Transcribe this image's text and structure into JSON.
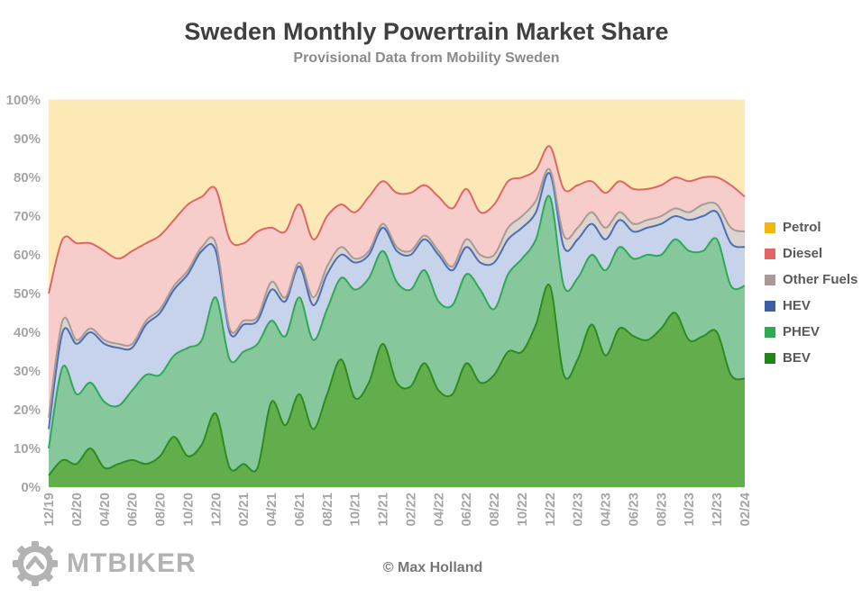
{
  "chart_data": {
    "type": "area",
    "stacked": true,
    "title": "Sweden Monthly Powertrain Market Share",
    "subtitle": "Provisional Data from Mobility Sweden",
    "ylim": [
      0,
      100
    ],
    "y_ticks": [
      "0%",
      "10%",
      "20%",
      "30%",
      "40%",
      "50%",
      "60%",
      "70%",
      "80%",
      "90%",
      "100%"
    ],
    "x_ticks": [
      "12/19",
      "02/20",
      "04/20",
      "06/20",
      "08/20",
      "10/20",
      "12/20",
      "02/21",
      "04/21",
      "06/21",
      "08/21",
      "10/21",
      "12/21",
      "02/22",
      "04/22",
      "06/22",
      "08/22",
      "10/22",
      "12/22",
      "02/23",
      "04/23",
      "06/23",
      "08/23",
      "10/23",
      "12/23",
      "02/24"
    ],
    "grid": true,
    "legend_position": "right",
    "months": [
      "2019-12",
      "2020-01",
      "2020-02",
      "2020-03",
      "2020-04",
      "2020-05",
      "2020-06",
      "2020-07",
      "2020-08",
      "2020-09",
      "2020-10",
      "2020-11",
      "2020-12",
      "2021-01",
      "2021-02",
      "2021-03",
      "2021-04",
      "2021-05",
      "2021-06",
      "2021-07",
      "2021-08",
      "2021-09",
      "2021-10",
      "2021-11",
      "2021-12",
      "2022-01",
      "2022-02",
      "2022-03",
      "2022-04",
      "2022-05",
      "2022-06",
      "2022-07",
      "2022-08",
      "2022-09",
      "2022-10",
      "2022-11",
      "2022-12",
      "2023-01",
      "2023-02",
      "2023-03",
      "2023-04",
      "2023-05",
      "2023-06",
      "2023-07",
      "2023-08",
      "2023-09",
      "2023-10",
      "2023-11",
      "2023-12",
      "2024-01",
      "2024-02"
    ],
    "series": [
      {
        "name": "BEV",
        "color": "#2e8b1f",
        "fill": "#63ae4c",
        "cumulative": [
          3,
          7,
          6,
          10,
          5,
          6,
          7,
          6,
          8,
          13,
          8,
          11,
          19,
          5,
          6,
          5,
          22,
          16,
          24,
          15,
          24,
          33,
          23,
          27,
          37,
          27,
          26,
          32,
          25,
          24,
          32,
          27,
          29,
          35,
          35,
          42,
          52,
          29,
          33,
          42,
          34,
          41,
          39,
          38,
          41,
          45,
          38,
          39,
          40,
          29,
          28
        ]
      },
      {
        "name": "PHEV",
        "color": "#2eaa55",
        "fill": "#86c89b",
        "cumulative": [
          10,
          31,
          24,
          27,
          22,
          21,
          25,
          29,
          29,
          34,
          36,
          38,
          49,
          33,
          35,
          37,
          43,
          39,
          49,
          38,
          46,
          54,
          51,
          54,
          61,
          53,
          51,
          56,
          48,
          47,
          55,
          51,
          46,
          55,
          59,
          64,
          75,
          52,
          54,
          60,
          56,
          62,
          59,
          60,
          60,
          64,
          61,
          61,
          64,
          52,
          52
        ]
      },
      {
        "name": "HEV",
        "color": "#4a6fb5",
        "fill": "#c7d3ea",
        "cumulative": [
          15,
          40,
          37,
          40,
          37,
          36,
          36,
          42,
          45,
          51,
          55,
          61,
          61,
          40,
          42,
          43,
          51,
          48,
          57,
          47,
          55,
          60,
          58,
          60,
          67,
          61,
          60,
          64,
          60,
          56,
          62,
          58,
          58,
          64,
          67,
          71,
          81,
          62,
          64,
          68,
          64,
          69,
          66,
          67,
          68,
          70,
          69,
          70,
          71,
          63,
          62
        ]
      },
      {
        "name": "Other Fuels",
        "color": "#a89a96",
        "fill": "#ddd3cf",
        "cumulative": [
          18,
          43,
          38,
          41,
          38,
          37,
          37,
          43,
          46,
          52,
          56,
          62,
          63,
          41,
          43,
          44,
          53,
          49,
          58,
          49,
          57,
          62,
          59,
          61,
          68,
          62,
          61,
          65,
          61,
          57,
          64,
          60,
          60,
          67,
          70,
          74,
          82,
          65,
          67,
          71,
          67,
          71,
          68,
          69,
          70,
          72,
          71,
          73,
          73,
          67,
          66
        ]
      },
      {
        "name": "Diesel",
        "color": "#e06666",
        "fill": "#f6cdcb",
        "cumulative": [
          50,
          64,
          63,
          63,
          61,
          59,
          61,
          63,
          65,
          69,
          73,
          75,
          77,
          64,
          63,
          66,
          67,
          66,
          73,
          64,
          70,
          73,
          71,
          75,
          79,
          76,
          76,
          78,
          75,
          72,
          77,
          71,
          73,
          79,
          80,
          82,
          88,
          77,
          78,
          79,
          76,
          79,
          77,
          77,
          78,
          80,
          79,
          80,
          80,
          78,
          75
        ]
      },
      {
        "name": "Petrol",
        "color": "#f2b705",
        "fill": "#fde9b6",
        "cumulative": [
          100,
          100,
          100,
          100,
          100,
          100,
          100,
          100,
          100,
          100,
          100,
          100,
          100,
          100,
          100,
          100,
          100,
          100,
          100,
          100,
          100,
          100,
          100,
          100,
          100,
          100,
          100,
          100,
          100,
          100,
          100,
          100,
          100,
          100,
          100,
          100,
          100,
          100,
          100,
          100,
          100,
          100,
          100,
          100,
          100,
          100,
          100,
          100,
          100,
          100,
          100
        ]
      }
    ],
    "legend": [
      {
        "name": "Petrol",
        "color": "#f2b705"
      },
      {
        "name": "Diesel",
        "color": "#e06666"
      },
      {
        "name": "Other Fuels",
        "color": "#a89a96"
      },
      {
        "name": "HEV",
        "color": "#3c5ea6"
      },
      {
        "name": "PHEV",
        "color": "#2eaa55"
      },
      {
        "name": "BEV",
        "color": "#238419"
      }
    ]
  },
  "footer": {
    "credit": "© Max Holland",
    "logo_text": "MTBIKER",
    "logo_icon": "gear-bike-logo-icon"
  }
}
